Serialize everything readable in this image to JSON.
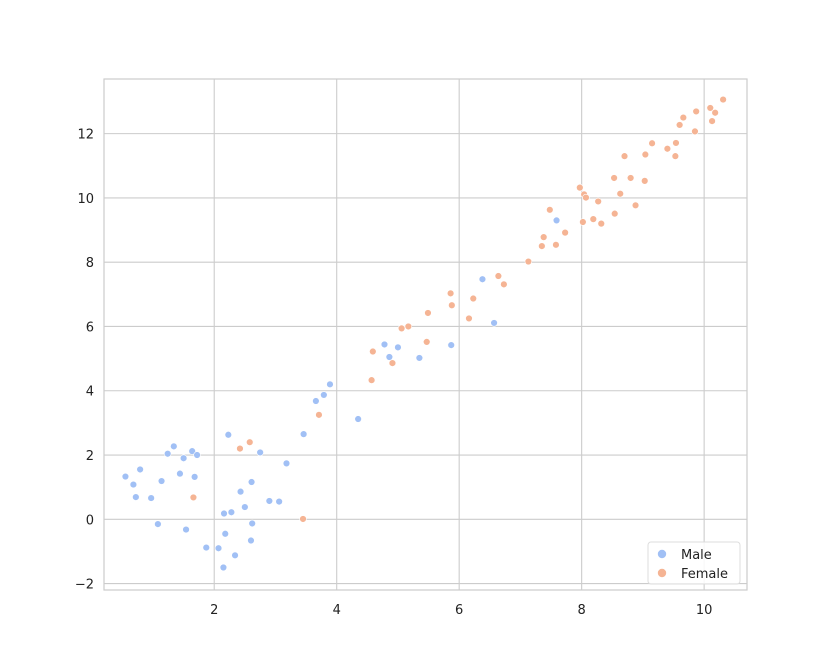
{
  "chart_data": {
    "type": "scatter",
    "title": "",
    "xlabel": "",
    "ylabel": "",
    "xlim": [
      0.2,
      10.7
    ],
    "ylim": [
      -2.2,
      13.7
    ],
    "xticks": [
      2,
      4,
      6,
      8,
      10
    ],
    "yticks": [
      -2,
      0,
      2,
      4,
      6,
      8,
      10,
      12
    ],
    "xtick_labels": [
      "2",
      "4",
      "6",
      "8",
      "10"
    ],
    "ytick_labels": [
      "−2",
      "0",
      "2",
      "4",
      "6",
      "8",
      "10",
      "12"
    ],
    "grid": true,
    "legend_position": "bottom-right",
    "series": [
      {
        "name": "Male",
        "color": "#a1c0f5",
        "points": [
          [
            0.55,
            1.33
          ],
          [
            0.68,
            1.08
          ],
          [
            0.72,
            0.69
          ],
          [
            0.79,
            1.55
          ],
          [
            0.97,
            0.66
          ],
          [
            1.08,
            -0.15
          ],
          [
            1.14,
            1.19
          ],
          [
            1.24,
            2.04
          ],
          [
            1.34,
            2.27
          ],
          [
            1.44,
            1.42
          ],
          [
            1.5,
            1.9
          ],
          [
            1.54,
            -0.32
          ],
          [
            1.64,
            2.12
          ],
          [
            1.68,
            1.32
          ],
          [
            1.72,
            2.0
          ],
          [
            1.87,
            -0.88
          ],
          [
            2.07,
            -0.9
          ],
          [
            2.15,
            -1.5
          ],
          [
            2.16,
            0.18
          ],
          [
            2.18,
            -0.45
          ],
          [
            2.23,
            2.63
          ],
          [
            2.28,
            0.22
          ],
          [
            2.34,
            -1.12
          ],
          [
            2.43,
            0.86
          ],
          [
            2.5,
            0.38
          ],
          [
            2.6,
            -0.66
          ],
          [
            2.61,
            1.16
          ],
          [
            2.62,
            -0.13
          ],
          [
            2.75,
            2.08
          ],
          [
            2.9,
            0.57
          ],
          [
            3.06,
            0.55
          ],
          [
            3.18,
            1.74
          ],
          [
            3.46,
            2.65
          ],
          [
            3.66,
            3.68
          ],
          [
            3.79,
            3.87
          ],
          [
            3.89,
            4.2
          ],
          [
            4.35,
            3.12
          ],
          [
            4.78,
            5.44
          ],
          [
            4.86,
            5.05
          ],
          [
            5.0,
            5.35
          ],
          [
            5.35,
            5.02
          ],
          [
            5.87,
            5.42
          ],
          [
            6.38,
            7.47
          ],
          [
            6.57,
            6.11
          ],
          [
            7.59,
            9.3
          ]
        ]
      },
      {
        "name": "Female",
        "color": "#f5b494",
        "points": [
          [
            1.66,
            0.68
          ],
          [
            2.42,
            2.2
          ],
          [
            2.58,
            2.4
          ],
          [
            3.45,
            0.01
          ],
          [
            3.71,
            3.25
          ],
          [
            4.57,
            4.33
          ],
          [
            4.59,
            5.22
          ],
          [
            4.91,
            4.86
          ],
          [
            5.06,
            5.94
          ],
          [
            5.17,
            6.0
          ],
          [
            5.47,
            5.52
          ],
          [
            5.49,
            6.42
          ],
          [
            5.86,
            7.03
          ],
          [
            5.88,
            6.66
          ],
          [
            6.16,
            6.25
          ],
          [
            6.23,
            6.87
          ],
          [
            6.64,
            7.57
          ],
          [
            6.73,
            7.31
          ],
          [
            7.13,
            8.02
          ],
          [
            7.35,
            8.5
          ],
          [
            7.38,
            8.78
          ],
          [
            7.48,
            9.63
          ],
          [
            7.58,
            8.54
          ],
          [
            7.73,
            8.92
          ],
          [
            7.97,
            10.32
          ],
          [
            8.02,
            9.25
          ],
          [
            8.04,
            10.11
          ],
          [
            8.07,
            10.01
          ],
          [
            8.19,
            9.34
          ],
          [
            8.27,
            9.89
          ],
          [
            8.32,
            9.2
          ],
          [
            8.53,
            10.62
          ],
          [
            8.54,
            9.51
          ],
          [
            8.63,
            10.13
          ],
          [
            8.7,
            11.3
          ],
          [
            8.8,
            10.62
          ],
          [
            8.88,
            9.77
          ],
          [
            9.03,
            10.53
          ],
          [
            9.04,
            11.35
          ],
          [
            9.15,
            11.7
          ],
          [
            9.4,
            11.53
          ],
          [
            9.53,
            11.3
          ],
          [
            9.54,
            11.71
          ],
          [
            9.6,
            12.27
          ],
          [
            9.66,
            12.5
          ],
          [
            9.85,
            12.07
          ],
          [
            9.87,
            12.69
          ],
          [
            10.1,
            12.8
          ],
          [
            10.13,
            12.39
          ],
          [
            10.18,
            12.65
          ],
          [
            10.31,
            13.06
          ]
        ]
      }
    ],
    "legend": {
      "entries": [
        {
          "label": "Male",
          "color": "#a1c0f5"
        },
        {
          "label": "Female",
          "color": "#f5b494"
        }
      ]
    }
  }
}
